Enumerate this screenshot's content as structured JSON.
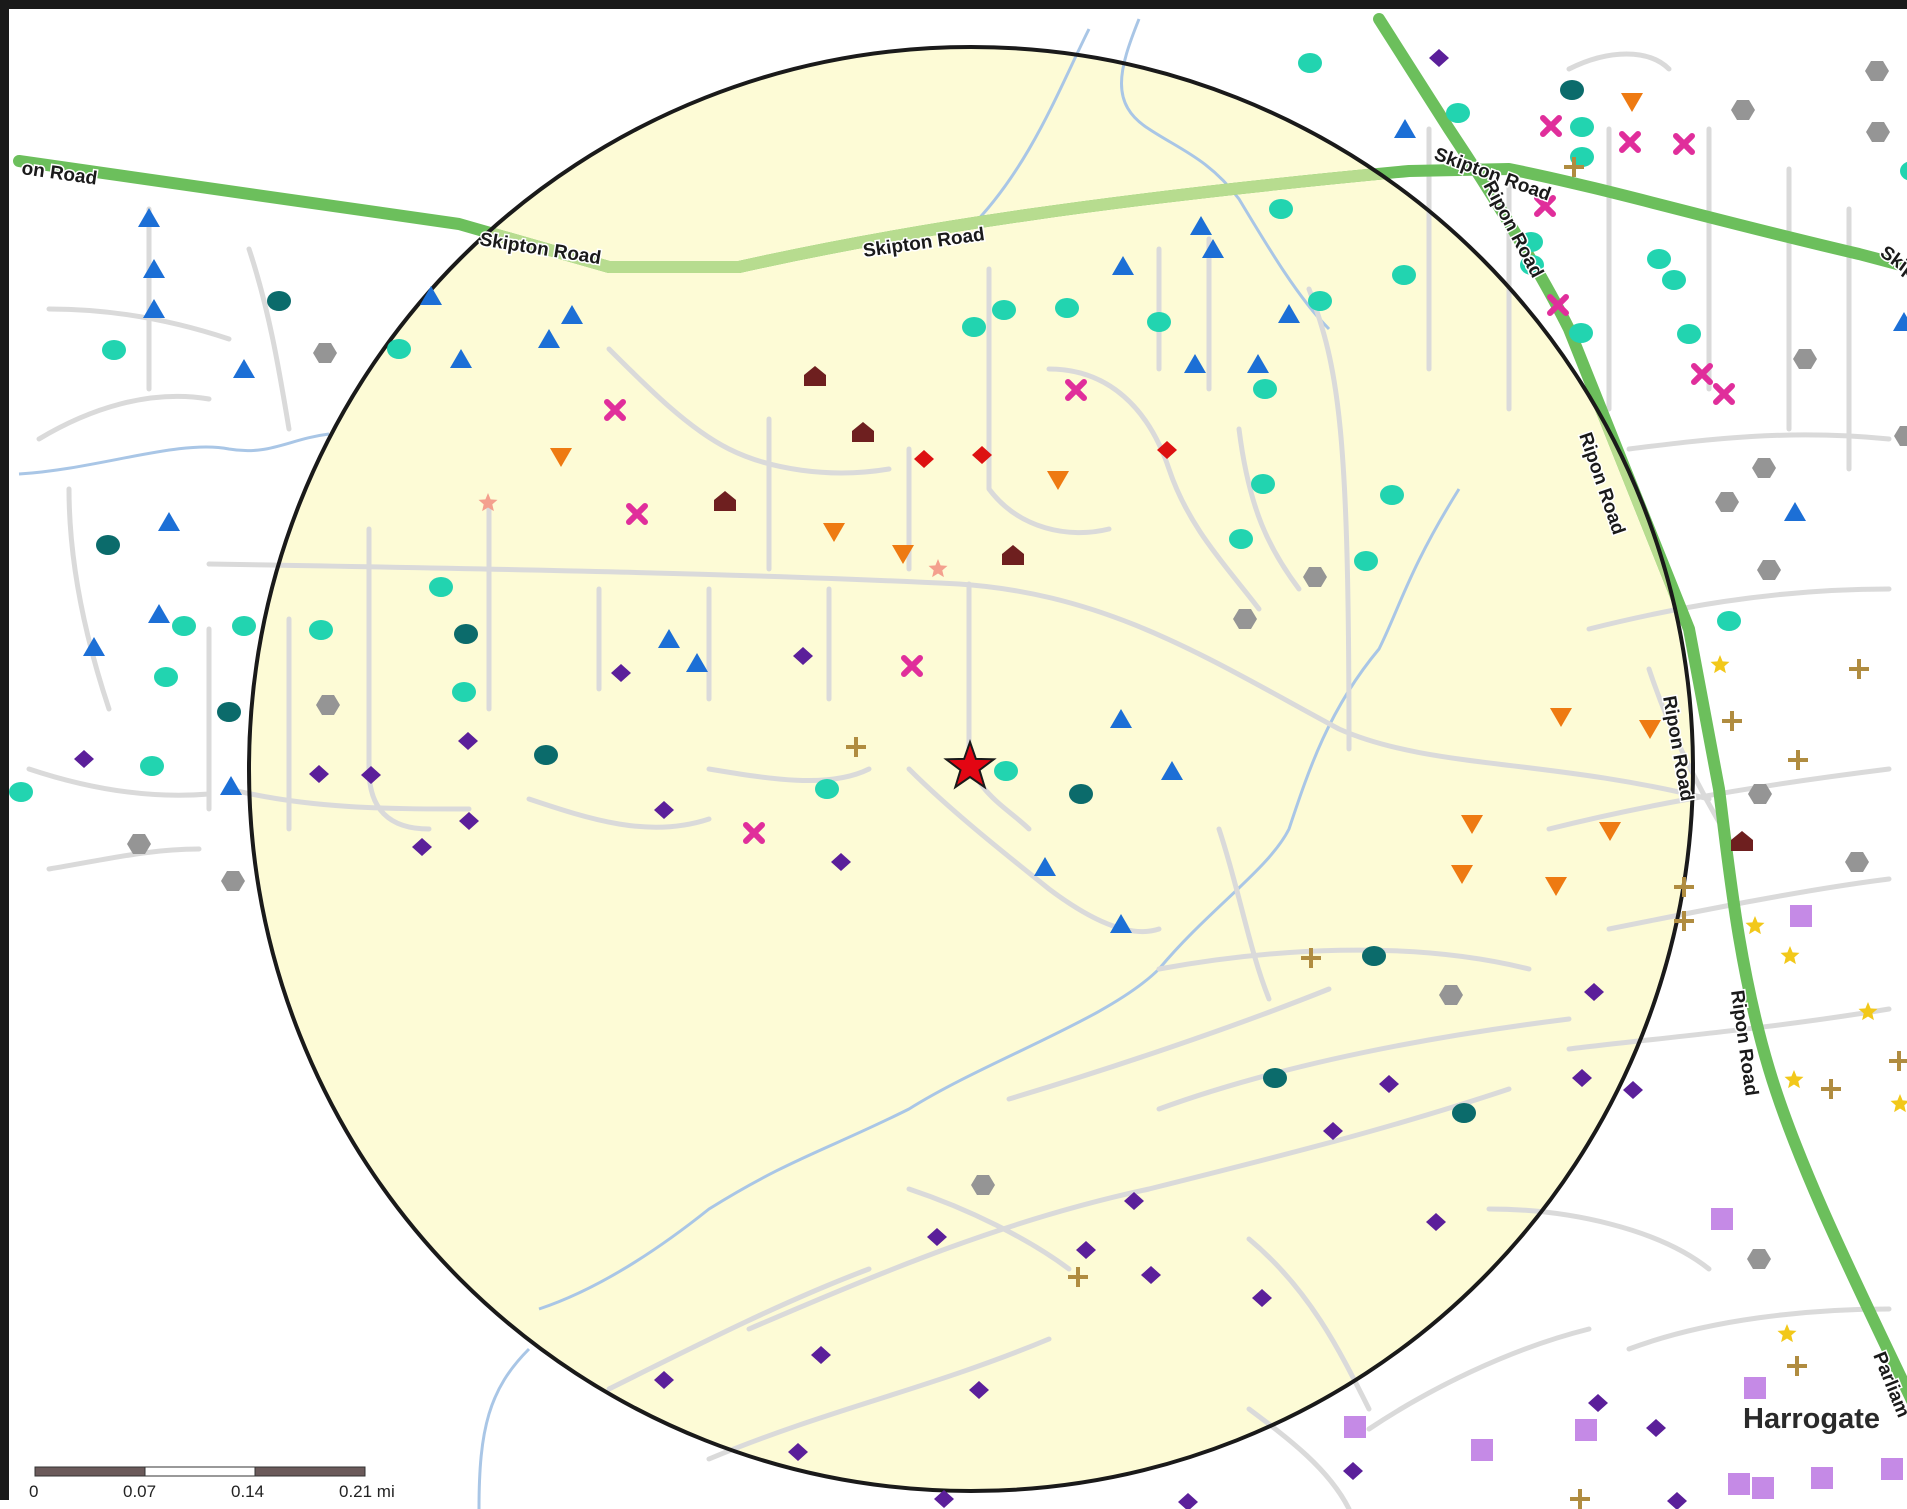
{
  "map": {
    "place_label": "Harrogate",
    "road_labels": {
      "skipton_road": "Skipton Road",
      "skipton_road_left": "on Road",
      "skipton_road_right": "Skipt",
      "ripon_road": "Ripon Road",
      "parliament_fragment": "Parliam"
    },
    "scale_bar": {
      "ticks": [
        "0",
        "0.07",
        "0.14",
        "0.21 mi"
      ]
    },
    "colors": {
      "buffer_fill": "#fdfbd6",
      "buffer_stroke": "#1a1a1a",
      "major_road": "#6cbf5c",
      "major_road_inside": "#b7dc8f",
      "minor_road": "#dcdcdc",
      "water": "#a9c6e6",
      "site_star": "#e30613"
    },
    "legend_symbols": [
      {
        "name": "blue-triangle",
        "color": "#1c6fd6"
      },
      {
        "name": "aqua-circle",
        "color": "#22d4b0"
      },
      {
        "name": "teal-circle",
        "color": "#0b6b6b"
      },
      {
        "name": "purple-diamond",
        "color": "#5b1f9a"
      },
      {
        "name": "magenta-cross",
        "color": "#e02e9b"
      },
      {
        "name": "orange-down-triangle",
        "color": "#ee7a12"
      },
      {
        "name": "gray-hexagon",
        "color": "#959595"
      },
      {
        "name": "brown-house",
        "color": "#6e1f1f"
      },
      {
        "name": "red-diamond",
        "color": "#dd1111"
      },
      {
        "name": "pink-star",
        "color": "#f4a08e"
      },
      {
        "name": "tan-plus",
        "color": "#b08c40"
      },
      {
        "name": "yellow-star",
        "color": "#f2c81a"
      },
      {
        "name": "lilac-square",
        "color": "#c58ae6"
      },
      {
        "name": "site-star",
        "color": "#e30613"
      }
    ]
  }
}
